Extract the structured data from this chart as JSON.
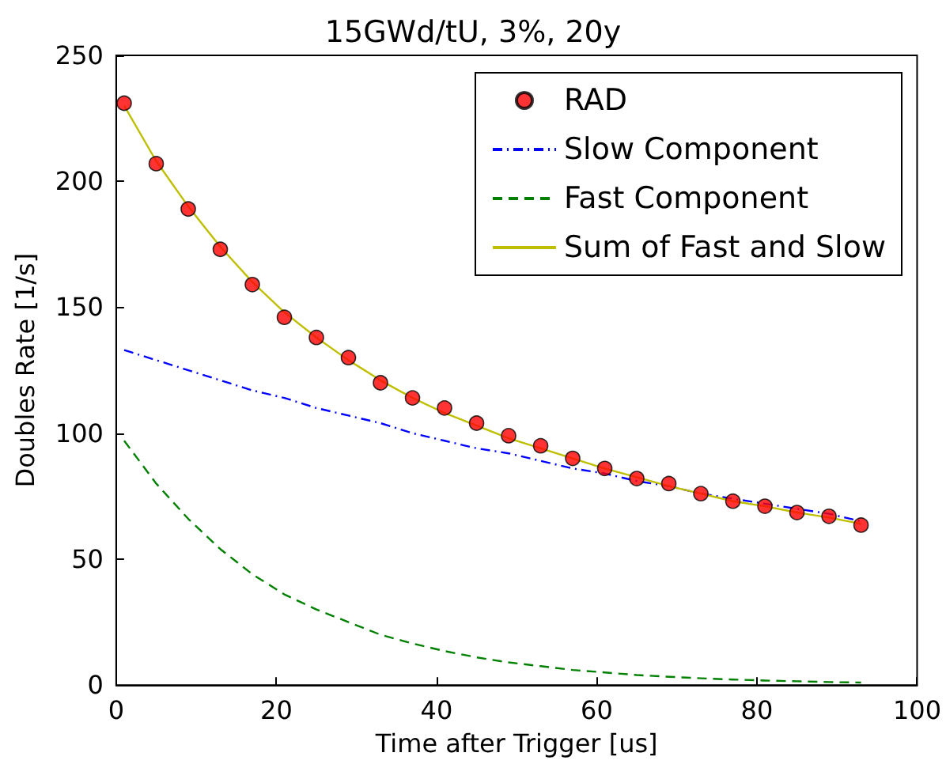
{
  "chart_data": {
    "type": "line",
    "title": "15GWd/tU, 3%, 20y",
    "xlabel": "Time after Trigger [us]",
    "ylabel": "Doubles Rate [1/s]",
    "x": [
      1,
      5,
      9,
      13,
      17,
      21,
      25,
      29,
      33,
      37,
      41,
      45,
      49,
      53,
      57,
      61,
      65,
      69,
      73,
      77,
      81,
      85,
      89,
      93
    ],
    "series": [
      {
        "name": "RAD",
        "type": "scatter",
        "marker": "circle",
        "color": "#ff0000",
        "values": [
          231,
          207,
          189,
          173,
          159,
          146,
          138,
          130,
          120,
          114,
          110,
          104,
          99,
          95,
          90,
          86,
          82,
          80,
          76,
          73,
          71,
          68.5,
          67,
          63.5
        ]
      },
      {
        "name": "Slow Component",
        "marker": "none",
        "line_style": "dashdot",
        "color": "#0000ff",
        "values": [
          133,
          129,
          125,
          121,
          117,
          114,
          110,
          107,
          104,
          100,
          97,
          94,
          92,
          89,
          86,
          84,
          81,
          79,
          76,
          74,
          72,
          70,
          68,
          65
        ]
      },
      {
        "name": "Fast Component",
        "marker": "none",
        "line_style": "dashed",
        "color": "#008000",
        "values": [
          97,
          80,
          66,
          54,
          44,
          36,
          30,
          25,
          20,
          16.5,
          13.5,
          11,
          9,
          7.5,
          6,
          5,
          4,
          3.3,
          2.7,
          2.2,
          1.8,
          1.5,
          1.2,
          1
        ]
      },
      {
        "name": "Sum of Fast and Slow",
        "marker": "none",
        "line_style": "solid",
        "color": "#bfbf00",
        "values": [
          230,
          208,
          190,
          174,
          160,
          148,
          138,
          129,
          121,
          114,
          108,
          103,
          98,
          94,
          90,
          86,
          82.5,
          79,
          76,
          73,
          71,
          68.5,
          66.5,
          64
        ]
      }
    ],
    "xlim": [
      0,
      100
    ],
    "xticks": [
      0,
      20,
      40,
      60,
      80,
      100
    ],
    "ylim": [
      0,
      250
    ],
    "yticks": [
      0,
      50,
      100,
      150,
      200,
      250
    ],
    "grid": false,
    "legend": "top right"
  }
}
